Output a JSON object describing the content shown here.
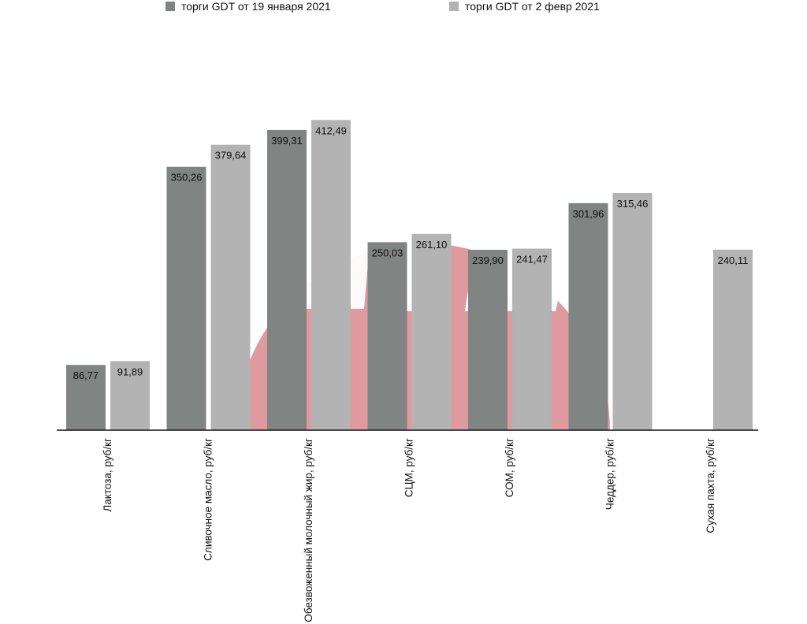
{
  "chart_data": {
    "type": "bar",
    "categories": [
      "Лактоза, руб/кг",
      "Сливочное масло, руб/кг",
      "Обезвоженный молочный жир, руб/кг",
      "СЦМ, руб/кг",
      "СОМ, руб/кг",
      "Чеддер, руб/кг",
      "Сухая пахта, руб/кг"
    ],
    "series": [
      {
        "name": "торги GDT от 19 января 2021",
        "color": "#808482",
        "values": [
          86.77,
          350.26,
          399.31,
          250.03,
          239.9,
          301.96,
          null
        ],
        "labels": [
          "86,77",
          "350,26",
          "399,31",
          "250,03",
          "239,90",
          "301,96",
          ""
        ]
      },
      {
        "name": "торги GDT от 2 февр 2021",
        "color": "#b3b3b3",
        "values": [
          91.89,
          379.64,
          412.49,
          261.1,
          241.47,
          315.46,
          240.11
        ],
        "labels": [
          "91,89",
          "379,64",
          "412,49",
          "261,10",
          "241,47",
          "315,46",
          "240,11"
        ]
      }
    ],
    "ylim": [
      0,
      420
    ],
    "legend_position": "top",
    "grid": false,
    "watermark_color": "#df9aa0"
  }
}
